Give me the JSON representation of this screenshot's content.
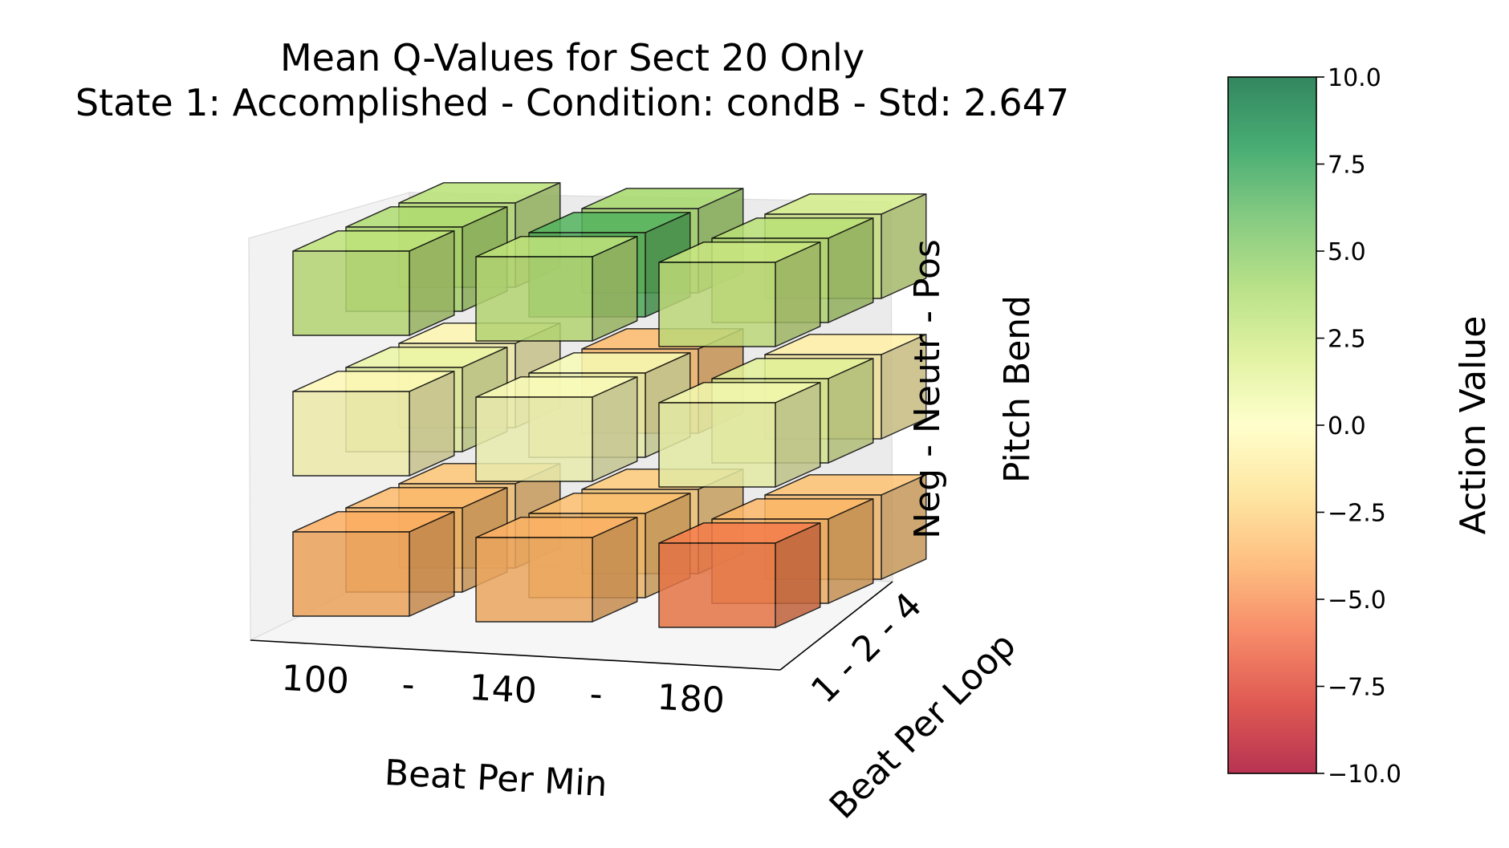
{
  "chart_data": {
    "type": "3d-bar",
    "title_lines": [
      "Mean Q-Values for Sect 20 Only",
      "State 1: Accomplished  -  Condition: condB  -  Std: 2.647"
    ],
    "xlabel": "Beat Per Min",
    "ylabel": "Beat Per Loop",
    "zlabel": "Pitch Bend",
    "x_tick_labels": [
      "100",
      "-",
      "140",
      "-",
      "180"
    ],
    "y_tick_label": "1 - 2 - 4",
    "z_tick_label": "Neg - Neutr - Pos",
    "x_categories": [
      "100",
      "140",
      "180"
    ],
    "y_categories": [
      "1",
      "2",
      "4"
    ],
    "z_categories": [
      "Neg",
      "Neutr",
      "Pos"
    ],
    "values": [
      {
        "bpm": "100",
        "loop": "1",
        "pitch": "Neg",
        "value": -3.0
      },
      {
        "bpm": "100",
        "loop": "2",
        "pitch": "Neg",
        "value": -3.5
      },
      {
        "bpm": "100",
        "loop": "4",
        "pitch": "Neg",
        "value": -4.0
      },
      {
        "bpm": "140",
        "loop": "1",
        "pitch": "Neg",
        "value": -2.8
      },
      {
        "bpm": "140",
        "loop": "2",
        "pitch": "Neg",
        "value": -3.3
      },
      {
        "bpm": "140",
        "loop": "4",
        "pitch": "Neg",
        "value": -3.8
      },
      {
        "bpm": "180",
        "loop": "1",
        "pitch": "Neg",
        "value": -3.2
      },
      {
        "bpm": "180",
        "loop": "2",
        "pitch": "Neg",
        "value": -3.6
      },
      {
        "bpm": "180",
        "loop": "4",
        "pitch": "Neg",
        "value": -5.5
      },
      {
        "bpm": "100",
        "loop": "1",
        "pitch": "Neutr",
        "value": -0.5
      },
      {
        "bpm": "100",
        "loop": "2",
        "pitch": "Neutr",
        "value": 1.0
      },
      {
        "bpm": "100",
        "loop": "4",
        "pitch": "Neutr",
        "value": -0.3
      },
      {
        "bpm": "140",
        "loop": "1",
        "pitch": "Neutr",
        "value": -3.5
      },
      {
        "bpm": "140",
        "loop": "2",
        "pitch": "Neutr",
        "value": 0.4
      },
      {
        "bpm": "140",
        "loop": "4",
        "pitch": "Neutr",
        "value": 0.2
      },
      {
        "bpm": "180",
        "loop": "1",
        "pitch": "Neutr",
        "value": -1.0
      },
      {
        "bpm": "180",
        "loop": "2",
        "pitch": "Neutr",
        "value": 1.5
      },
      {
        "bpm": "180",
        "loop": "4",
        "pitch": "Neutr",
        "value": 0.6
      },
      {
        "bpm": "100",
        "loop": "1",
        "pitch": "Pos",
        "value": 3.2
      },
      {
        "bpm": "100",
        "loop": "2",
        "pitch": "Pos",
        "value": 3.6
      },
      {
        "bpm": "100",
        "loop": "4",
        "pitch": "Pos",
        "value": 3.0
      },
      {
        "bpm": "140",
        "loop": "1",
        "pitch": "Pos",
        "value": 4.0
      },
      {
        "bpm": "140",
        "loop": "2",
        "pitch": "Pos",
        "value": 6.5
      },
      {
        "bpm": "140",
        "loop": "4",
        "pitch": "Pos",
        "value": 3.0
      },
      {
        "bpm": "180",
        "loop": "1",
        "pitch": "Pos",
        "value": 2.2
      },
      {
        "bpm": "180",
        "loop": "2",
        "pitch": "Pos",
        "value": 3.2
      },
      {
        "bpm": "180",
        "loop": "4",
        "pitch": "Pos",
        "value": 2.6
      }
    ],
    "colorbar": {
      "label": "Action Value",
      "range": [
        -10,
        10
      ],
      "ticks": [
        "10.0",
        "7.5",
        "5.0",
        "2.5",
        "0.0",
        "−2.5",
        "−5.0",
        "−7.5",
        "−10.0"
      ],
      "tick_values": [
        10,
        7.5,
        5,
        2.5,
        0,
        -2.5,
        -5,
        -7.5,
        -10
      ],
      "colormap": "RdYlGn",
      "colormap_stops": [
        "#a50026",
        "#d73027",
        "#f46d43",
        "#fdae61",
        "#fee08b",
        "#ffffbf",
        "#d9ef8b",
        "#a6d96a",
        "#66bd63",
        "#1a9850",
        "#006837"
      ],
      "alpha": 0.8
    },
    "grid": false
  }
}
